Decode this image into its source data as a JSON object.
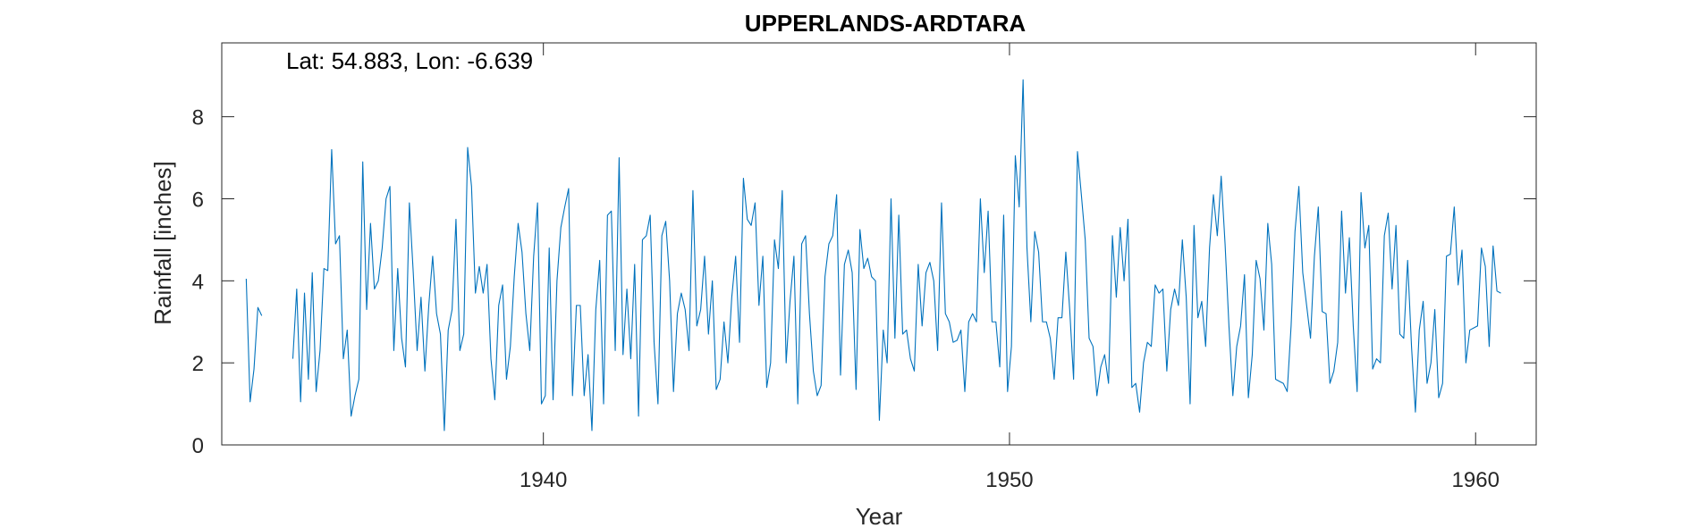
{
  "chart_data": {
    "type": "line",
    "title": "UPPERLANDS-ARDTARA",
    "annotation": "Lat: 54.883, Lon: -6.639",
    "xlabel": "Year",
    "ylabel": "Rainfall [inches]",
    "xlim": [
      1933.1,
      1961.3
    ],
    "ylim": [
      0,
      9.8
    ],
    "xticks": [
      1940,
      1950,
      1960
    ],
    "yticks": [
      0,
      2,
      4,
      6,
      8
    ],
    "grid": false,
    "legend": "none",
    "line_color": "#0072BD",
    "series": [
      {
        "x_start": 1933.625,
        "x_step": 0.0833333,
        "values": [
          4.05,
          1.05,
          1.85,
          3.35,
          3.15,
          null,
          null,
          null,
          null,
          null,
          null,
          null,
          2.1,
          3.8,
          1.05,
          3.7,
          1.6,
          4.2,
          1.3,
          2.3,
          4.3,
          4.25,
          7.2,
          4.9,
          5.1,
          2.1,
          2.8,
          0.7,
          1.2,
          1.6,
          6.9,
          3.3,
          5.4,
          3.8,
          4.0,
          4.8,
          6.0,
          6.3,
          2.3,
          4.3,
          2.6,
          1.9,
          5.9,
          4.2,
          2.3,
          3.6,
          1.8,
          3.4,
          4.6,
          3.2,
          2.7,
          0.35,
          2.8,
          3.3,
          5.5,
          2.3,
          2.7,
          7.25,
          6.3,
          3.7,
          4.35,
          3.7,
          4.4,
          2.1,
          1.1,
          3.4,
          3.9,
          1.6,
          2.4,
          4.1,
          5.4,
          4.7,
          3.2,
          2.3,
          4.6,
          5.9,
          1.0,
          1.2,
          4.8,
          1.1,
          4.0,
          5.3,
          5.8,
          6.25,
          1.2,
          3.4,
          3.4,
          1.2,
          2.2,
          0.35,
          3.3,
          4.5,
          1.0,
          5.6,
          5.7,
          2.3,
          7.0,
          2.2,
          3.8,
          2.1,
          4.4,
          0.7,
          5.0,
          5.1,
          5.6,
          2.5,
          1.0,
          5.1,
          5.45,
          4.0,
          1.3,
          3.2,
          3.7,
          3.3,
          2.3,
          6.2,
          2.9,
          3.3,
          4.6,
          2.7,
          4.0,
          1.35,
          1.6,
          3.0,
          2.0,
          3.6,
          4.6,
          2.5,
          6.5,
          5.5,
          5.35,
          5.9,
          3.4,
          4.6,
          1.4,
          2.0,
          5.0,
          4.3,
          6.2,
          2.0,
          3.5,
          4.6,
          1.0,
          4.9,
          5.1,
          3.2,
          1.8,
          1.2,
          1.45,
          4.1,
          4.9,
          5.1,
          6.1,
          1.7,
          4.4,
          4.75,
          4.2,
          1.35,
          5.25,
          4.3,
          4.55,
          4.1,
          4.0,
          0.6,
          2.8,
          2.0,
          6.0,
          2.6,
          5.6,
          2.7,
          2.8,
          2.1,
          1.8,
          4.4,
          2.9,
          4.2,
          4.45,
          4.0,
          2.3,
          5.9,
          3.2,
          3.0,
          2.5,
          2.55,
          2.8,
          1.3,
          3.0,
          3.2,
          3.0,
          6.0,
          4.2,
          5.7,
          3.0,
          3.0,
          1.9,
          5.6,
          1.3,
          2.4,
          7.05,
          5.8,
          8.9,
          4.8,
          3.0,
          5.2,
          4.7,
          3.0,
          3.0,
          2.6,
          1.6,
          3.1,
          3.1,
          4.7,
          3.3,
          1.6,
          7.15,
          6.1,
          5.0,
          2.6,
          2.4,
          1.2,
          1.9,
          2.2,
          1.5,
          5.1,
          3.6,
          5.3,
          4.0,
          5.5,
          1.4,
          1.5,
          0.8,
          2.0,
          2.5,
          2.4,
          3.9,
          3.7,
          3.8,
          1.8,
          3.3,
          3.8,
          3.4,
          5.0,
          3.6,
          1.0,
          5.35,
          3.1,
          3.5,
          2.4,
          4.8,
          6.1,
          5.1,
          6.55,
          4.9,
          2.9,
          1.2,
          2.4,
          2.9,
          4.15,
          1.15,
          2.2,
          4.5,
          4.05,
          2.8,
          5.4,
          4.4,
          1.6,
          1.55,
          1.5,
          1.3,
          2.9,
          5.2,
          6.3,
          4.2,
          3.4,
          2.6,
          4.6,
          5.8,
          3.25,
          3.2,
          1.5,
          1.8,
          2.5,
          5.7,
          3.7,
          5.05,
          2.9,
          1.3,
          6.15,
          4.8,
          5.35,
          1.85,
          2.1,
          2.0,
          5.1,
          5.65,
          3.8,
          5.35,
          2.7,
          2.6,
          4.5,
          2.4,
          0.8,
          2.8,
          3.5,
          1.5,
          2.0,
          3.3,
          1.15,
          1.5,
          4.6,
          4.65,
          5.8,
          3.9,
          4.75,
          2.0,
          2.8,
          2.85,
          2.9,
          4.8,
          4.35,
          2.4,
          4.85,
          3.75,
          3.7
        ]
      }
    ]
  }
}
